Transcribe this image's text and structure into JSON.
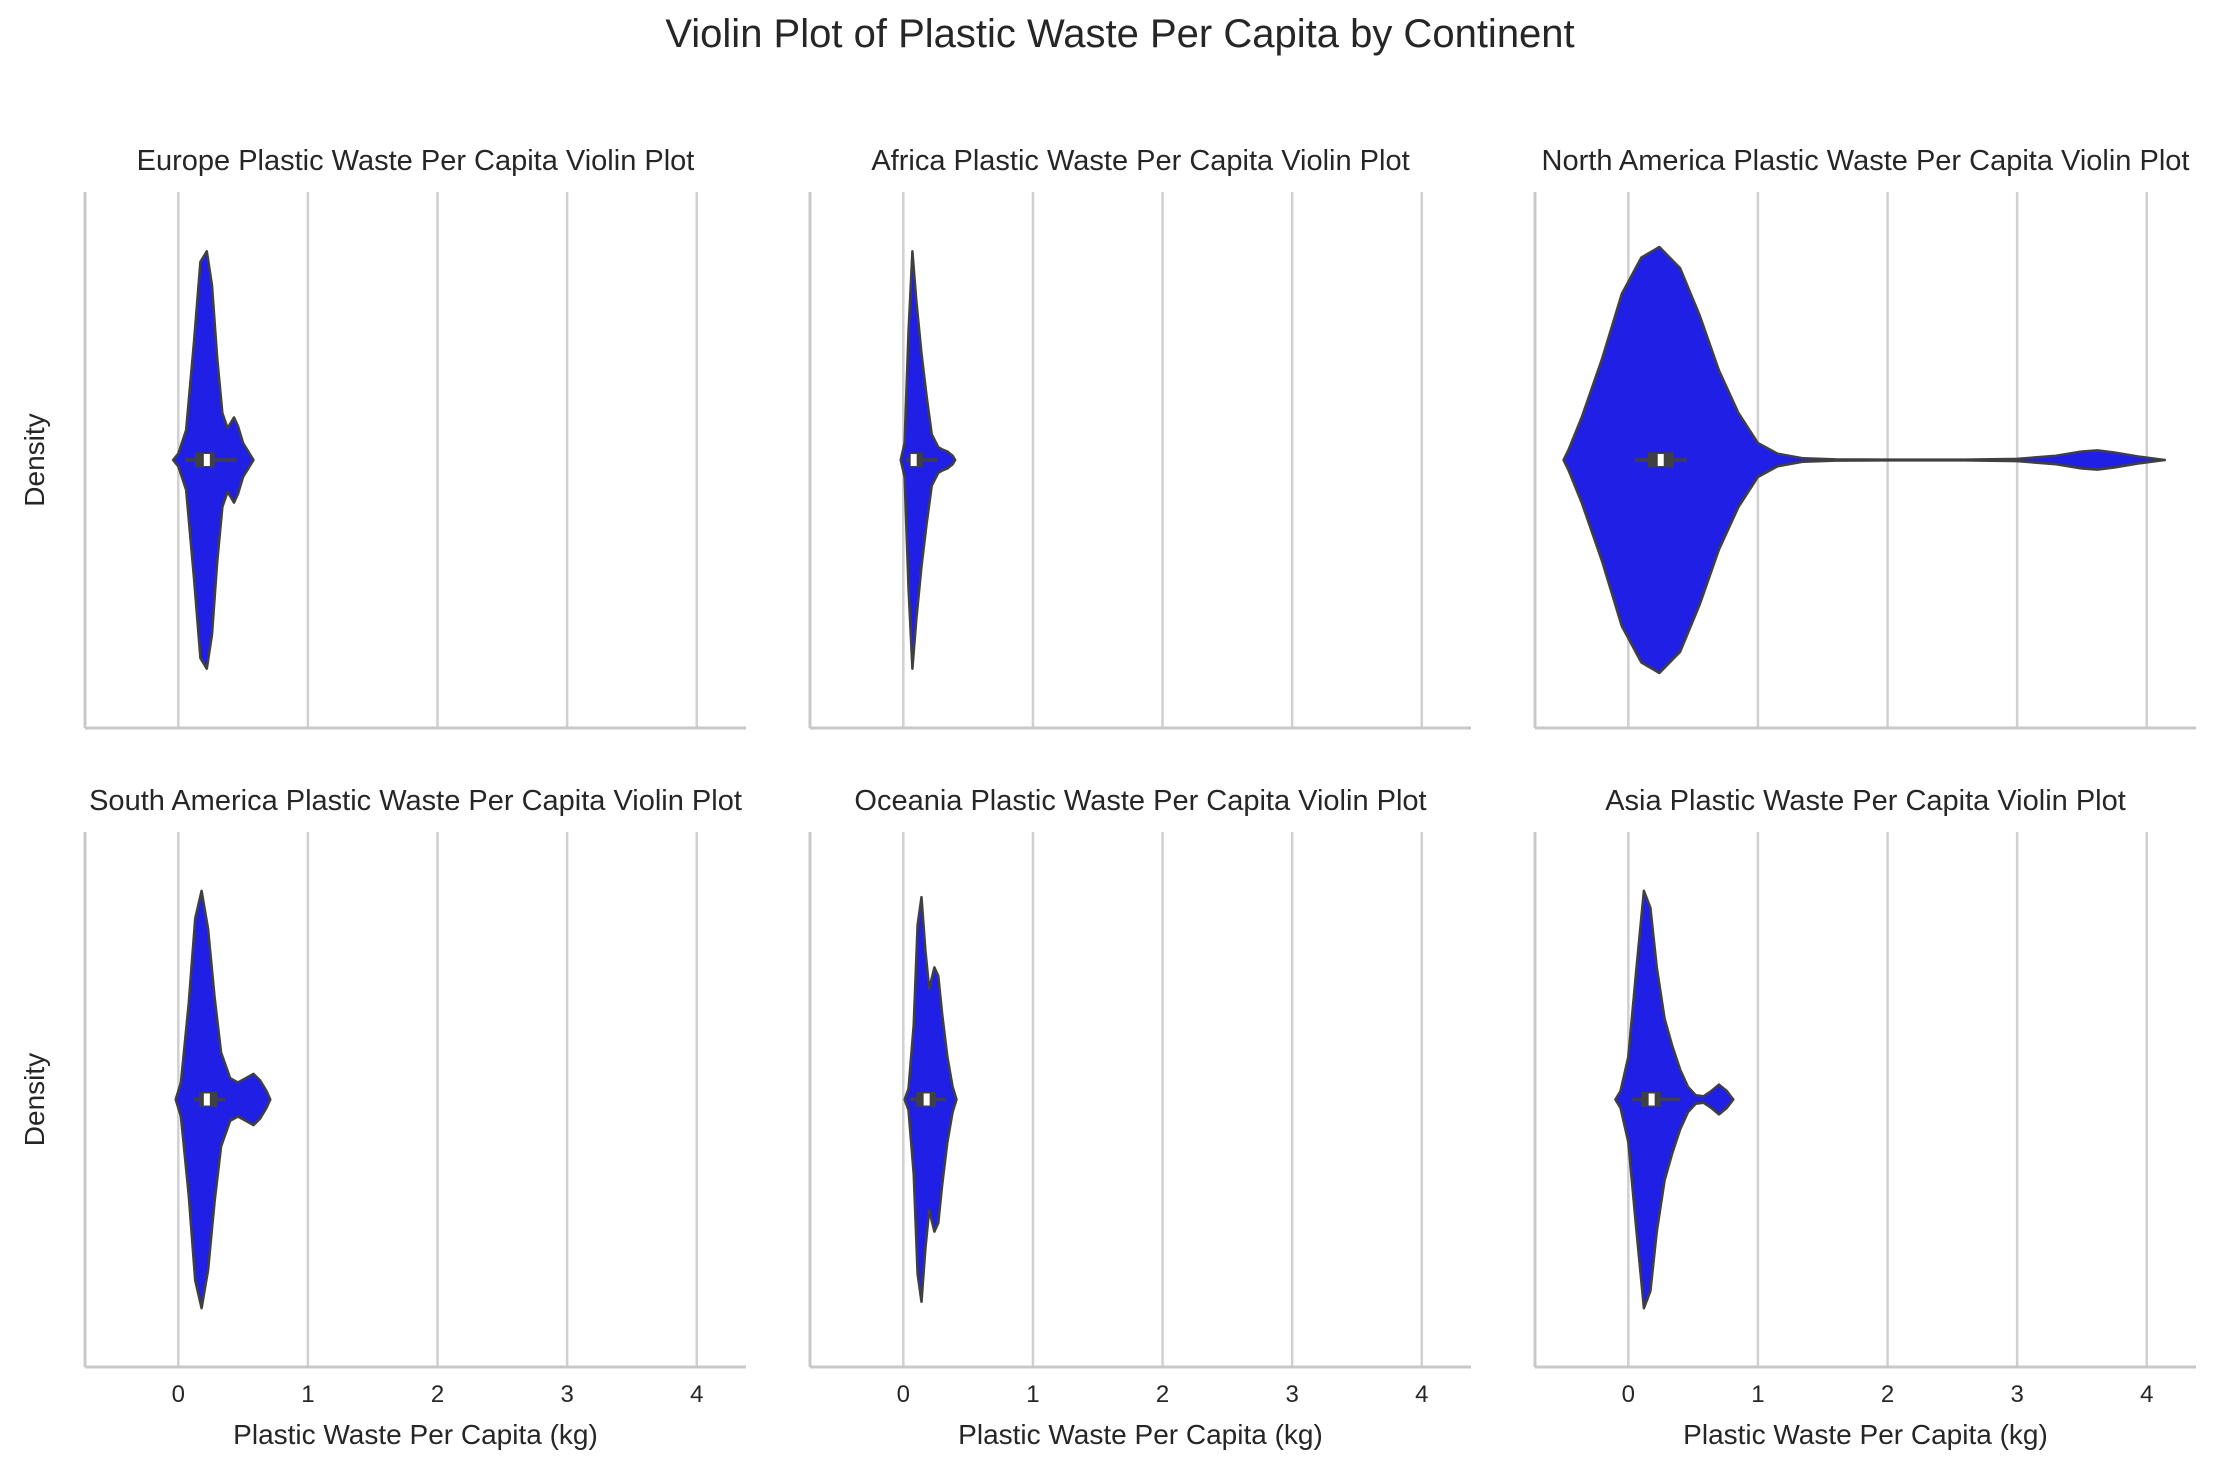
{
  "figure": {
    "title": "Violin Plot of Plastic Waste Per Capita by Continent",
    "violin_color": "#1f1fe6",
    "edge_color": "#404040",
    "grid_color": "#d0d0d0"
  },
  "chart_data": [
    {
      "type": "violin",
      "title": "Europe Plastic Waste Per Capita Violin Plot",
      "xlabel": "",
      "ylabel": "Density",
      "xlim": [
        -0.72,
        4.38
      ],
      "xticks": [
        "0",
        "1",
        "2",
        "3",
        "4"
      ],
      "grid": "vertical",
      "stats": {
        "min": 0.05,
        "q1": 0.13,
        "median": 0.22,
        "q3": 0.28,
        "max": 0.45
      },
      "density": [
        [
          -0.04,
          0.0
        ],
        [
          0.0,
          0.03
        ],
        [
          0.06,
          0.14
        ],
        [
          0.12,
          0.55
        ],
        [
          0.17,
          0.93
        ],
        [
          0.22,
          0.98
        ],
        [
          0.26,
          0.82
        ],
        [
          0.3,
          0.48
        ],
        [
          0.34,
          0.22
        ],
        [
          0.38,
          0.15
        ],
        [
          0.43,
          0.2
        ],
        [
          0.46,
          0.16
        ],
        [
          0.5,
          0.08
        ],
        [
          0.55,
          0.03
        ],
        [
          0.58,
          0.0
        ]
      ]
    },
    {
      "type": "violin",
      "title": "Africa Plastic Waste Per Capita Violin Plot",
      "xlabel": "",
      "ylabel": "",
      "xlim": [
        -0.72,
        4.38
      ],
      "xticks": [
        "0",
        "1",
        "2",
        "3",
        "4"
      ],
      "grid": "vertical",
      "stats": {
        "min": 0.02,
        "q1": 0.05,
        "median": 0.08,
        "q3": 0.15,
        "max": 0.26
      },
      "density": [
        [
          -0.02,
          0.0
        ],
        [
          0.01,
          0.08
        ],
        [
          0.04,
          0.6
        ],
        [
          0.07,
          0.98
        ],
        [
          0.1,
          0.75
        ],
        [
          0.14,
          0.5
        ],
        [
          0.18,
          0.3
        ],
        [
          0.22,
          0.12
        ],
        [
          0.27,
          0.06
        ],
        [
          0.3,
          0.05
        ],
        [
          0.34,
          0.04
        ],
        [
          0.38,
          0.02
        ],
        [
          0.4,
          0.0
        ]
      ]
    },
    {
      "type": "violin",
      "title": "North America Plastic Waste Per Capita Violin Plot",
      "xlabel": "",
      "ylabel": "",
      "xlim": [
        -0.72,
        4.38
      ],
      "xticks": [
        "0",
        "1",
        "2",
        "3",
        "4"
      ],
      "grid": "vertical",
      "stats": {
        "min": 0.05,
        "q1": 0.15,
        "median": 0.25,
        "q3": 0.35,
        "max": 0.45
      },
      "density": [
        [
          -0.5,
          0.0
        ],
        [
          -0.46,
          0.05
        ],
        [
          -0.36,
          0.2
        ],
        [
          -0.2,
          0.48
        ],
        [
          -0.05,
          0.78
        ],
        [
          0.1,
          0.95
        ],
        [
          0.24,
          1.0
        ],
        [
          0.4,
          0.9
        ],
        [
          0.55,
          0.68
        ],
        [
          0.7,
          0.42
        ],
        [
          0.85,
          0.22
        ],
        [
          1.0,
          0.08
        ],
        [
          1.15,
          0.03
        ],
        [
          1.35,
          0.008
        ],
        [
          1.6,
          0.003
        ],
        [
          2.0,
          0.002
        ],
        [
          2.6,
          0.002
        ],
        [
          3.0,
          0.005
        ],
        [
          3.3,
          0.02
        ],
        [
          3.5,
          0.04
        ],
        [
          3.62,
          0.045
        ],
        [
          3.75,
          0.035
        ],
        [
          3.95,
          0.015
        ],
        [
          4.14,
          0.0
        ]
      ]
    },
    {
      "type": "violin",
      "title": "South America Plastic Waste Per Capita Violin Plot",
      "xlabel": "Plastic Waste Per Capita (kg)",
      "ylabel": "Density",
      "xlim": [
        -0.72,
        4.38
      ],
      "xticks": [
        "0",
        "1",
        "2",
        "3",
        "4"
      ],
      "grid": "vertical",
      "stats": {
        "min": 0.12,
        "q1": 0.16,
        "median": 0.22,
        "q3": 0.3,
        "max": 0.36
      },
      "density": [
        [
          -0.02,
          0.0
        ],
        [
          0.02,
          0.08
        ],
        [
          0.08,
          0.45
        ],
        [
          0.13,
          0.85
        ],
        [
          0.18,
          0.98
        ],
        [
          0.23,
          0.8
        ],
        [
          0.28,
          0.48
        ],
        [
          0.33,
          0.22
        ],
        [
          0.4,
          0.1
        ],
        [
          0.46,
          0.08
        ],
        [
          0.52,
          0.1
        ],
        [
          0.58,
          0.12
        ],
        [
          0.63,
          0.09
        ],
        [
          0.68,
          0.04
        ],
        [
          0.71,
          0.0
        ]
      ]
    },
    {
      "type": "violin",
      "title": "Oceania Plastic Waste Per Capita Violin Plot",
      "xlabel": "Plastic Waste Per Capita (kg)",
      "ylabel": "",
      "xlim": [
        -0.72,
        4.38
      ],
      "xticks": [
        "0",
        "1",
        "2",
        "3",
        "4"
      ],
      "grid": "vertical",
      "stats": {
        "min": 0.05,
        "q1": 0.1,
        "median": 0.18,
        "q3": 0.25,
        "max": 0.33
      },
      "density": [
        [
          0.01,
          0.0
        ],
        [
          0.04,
          0.05
        ],
        [
          0.08,
          0.35
        ],
        [
          0.11,
          0.82
        ],
        [
          0.14,
          0.95
        ],
        [
          0.17,
          0.7
        ],
        [
          0.2,
          0.52
        ],
        [
          0.24,
          0.62
        ],
        [
          0.27,
          0.58
        ],
        [
          0.3,
          0.4
        ],
        [
          0.34,
          0.2
        ],
        [
          0.38,
          0.06
        ],
        [
          0.41,
          0.0
        ]
      ]
    },
    {
      "type": "violin",
      "title": "Asia Plastic Waste Per Capita Violin Plot",
      "xlabel": "Plastic Waste Per Capita (kg)",
      "ylabel": "",
      "xlim": [
        -0.72,
        4.38
      ],
      "xticks": [
        "0",
        "1",
        "2",
        "3",
        "4"
      ],
      "grid": "vertical",
      "stats": {
        "min": 0.03,
        "q1": 0.1,
        "median": 0.18,
        "q3": 0.25,
        "max": 0.4
      },
      "density": [
        [
          -0.1,
          0.0
        ],
        [
          -0.06,
          0.04
        ],
        [
          0.0,
          0.2
        ],
        [
          0.06,
          0.6
        ],
        [
          0.12,
          0.98
        ],
        [
          0.17,
          0.9
        ],
        [
          0.22,
          0.62
        ],
        [
          0.28,
          0.38
        ],
        [
          0.34,
          0.25
        ],
        [
          0.4,
          0.14
        ],
        [
          0.46,
          0.06
        ],
        [
          0.52,
          0.02
        ],
        [
          0.58,
          0.015
        ],
        [
          0.64,
          0.04
        ],
        [
          0.7,
          0.07
        ],
        [
          0.76,
          0.04
        ],
        [
          0.81,
          0.0
        ]
      ]
    }
  ]
}
